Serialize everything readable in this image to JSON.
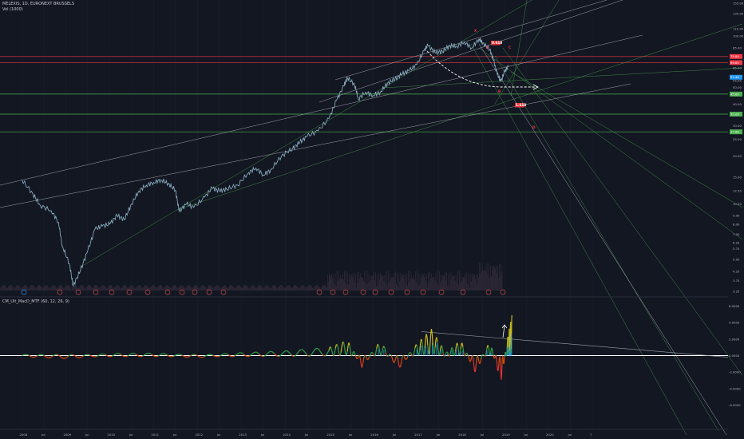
{
  "header": {
    "symbol_line": "MELEXIS, 1D, EURONEXT BRUSSELS",
    "volume_label": "Vol (1000)"
  },
  "indicator": {
    "label": "CM_Ult_MacD_MTF (60, 12, 26, 9)"
  },
  "colors": {
    "background": "#131722",
    "candle_line": "#8fb6c9",
    "red_line": "#f23645",
    "green_line": "#4caf50",
    "white_line": "#d1d4dc",
    "pattern_label_bg": "#e8333a",
    "price_tag_green": "#26a69a",
    "price_tag_blue": "#2196f3"
  },
  "pattern_labels": [
    "X",
    "A",
    "C",
    "B",
    "D",
    "0.618",
    "1.618"
  ],
  "chart_data": [
    {
      "type": "line",
      "title": "",
      "scale": "log",
      "x_ticks": [
        "2008",
        "Jul",
        "2009",
        "Jul",
        "2010",
        "Jul",
        "2011",
        "Jul",
        "2012",
        "Jul",
        "2013",
        "Jul",
        "2014",
        "Jul",
        "2015",
        "Jul",
        "2016",
        "Jul",
        "2017",
        "Jul",
        "2018",
        "Jul",
        "2019",
        "Jul",
        "2020",
        "Jul",
        "7"
      ],
      "y_ticks": [
        "155.00",
        "135.00",
        "110.00",
        "100.00",
        "85.00",
        "75.00",
        "65.00",
        "55.00",
        "50.00",
        "45.00",
        "40.00",
        "35.00",
        "30.00",
        "25.00",
        "20.00",
        "15.00",
        "12.50",
        "10.50",
        "9.00",
        "8.00",
        "7.00",
        "6.25",
        "5.75",
        "5.00",
        "4.25",
        "3.75",
        "3.25"
      ],
      "price_tags": [
        {
          "value": "75.80",
          "color": "#f23645"
        },
        {
          "value": "69.85",
          "color": "#f23645"
        },
        {
          "value": "57.40",
          "color": "#2196f3"
        },
        {
          "value": "45.80",
          "color": "#4caf50"
        },
        {
          "value": "35.00",
          "color": "#4caf50"
        },
        {
          "value": "27.60",
          "color": "#4caf50"
        }
      ],
      "series": [
        {
          "values": [
            [
              "2008-01",
              14.5
            ],
            [
              "2008-04",
              12.0
            ],
            [
              "2008-06",
              10.3
            ],
            [
              "2008-09",
              9.6
            ],
            [
              "2008-11",
              8.2
            ],
            [
              "2008-12",
              6.0
            ],
            [
              "2009-02",
              4.7
            ],
            [
              "2009-03",
              3.5
            ],
            [
              "2009-05",
              4.3
            ],
            [
              "2009-07",
              5.6
            ],
            [
              "2009-09",
              7.5
            ],
            [
              "2009-11",
              7.8
            ],
            [
              "2010-01",
              8.0
            ],
            [
              "2010-03",
              9.0
            ],
            [
              "2010-05",
              8.5
            ],
            [
              "2010-07",
              10.5
            ],
            [
              "2010-09",
              12.5
            ],
            [
              "2010-11",
              13.5
            ],
            [
              "2011-01",
              14.0
            ],
            [
              "2011-03",
              14.5
            ],
            [
              "2011-05",
              13.8
            ],
            [
              "2011-07",
              12.6
            ],
            [
              "2011-08",
              9.5
            ],
            [
              "2011-10",
              10.5
            ],
            [
              "2011-12",
              10.0
            ],
            [
              "2012-03",
              11.5
            ],
            [
              "2012-05",
              13.0
            ],
            [
              "2012-07",
              12.5
            ],
            [
              "2012-09",
              12.8
            ],
            [
              "2012-12",
              13.5
            ],
            [
              "2013-03",
              16.0
            ],
            [
              "2013-05",
              17.0
            ],
            [
              "2013-07",
              15.5
            ],
            [
              "2013-09",
              16.5
            ],
            [
              "2013-12",
              20.0
            ],
            [
              "2014-03",
              22.0
            ],
            [
              "2014-05",
              24.0
            ],
            [
              "2014-07",
              26.0
            ],
            [
              "2014-10",
              28.0
            ],
            [
              "2015-01",
              33.0
            ],
            [
              "2015-03",
              42.0
            ],
            [
              "2015-05",
              51.0
            ],
            [
              "2015-06",
              57.0
            ],
            [
              "2015-08",
              52.0
            ],
            [
              "2015-09",
              43.0
            ],
            [
              "2015-11",
              47.0
            ],
            [
              "2016-01",
              45.0
            ],
            [
              "2016-03",
              47.0
            ],
            [
              "2016-05",
              53.0
            ],
            [
              "2016-07",
              56.0
            ],
            [
              "2016-09",
              60.0
            ],
            [
              "2016-11",
              63.0
            ],
            [
              "2017-01",
              68.0
            ],
            [
              "2017-03",
              82.0
            ],
            [
              "2017-04",
              88.0
            ],
            [
              "2017-06",
              80.0
            ],
            [
              "2017-08",
              81.0
            ],
            [
              "2017-10",
              88.0
            ],
            [
              "2017-12",
              87.0
            ],
            [
              "2018-02",
              92.0
            ],
            [
              "2018-04",
              85.0
            ],
            [
              "2018-06",
              96.0
            ],
            [
              "2018-07",
              91.0
            ],
            [
              "2018-09",
              83.0
            ],
            [
              "2018-10",
              72.0
            ],
            [
              "2018-11",
              60.0
            ],
            [
              "2018-12",
              54.0
            ],
            [
              "2019-01",
              62.0
            ],
            [
              "2019-02",
              66.0
            ]
          ]
        }
      ]
    },
    {
      "type": "line",
      "title": "",
      "y_ticks": [
        "6.0000",
        "4.0000",
        "2.0000",
        "0.0000",
        "-2.0000",
        "-4.0000",
        "-6.0000"
      ],
      "zero_line": 0,
      "series": [
        {
          "values": [
            [
              "2008",
              0.0
            ],
            [
              "2009",
              -0.2
            ],
            [
              "2010",
              0.1
            ],
            [
              "2011",
              0.15
            ],
            [
              "2012",
              -0.1
            ],
            [
              "2013",
              0.2
            ],
            [
              "2014",
              0.4
            ],
            [
              "2015",
              0.8
            ],
            [
              "2015-06",
              1.6
            ],
            [
              "2015-10",
              -1.2
            ],
            [
              "2016-03",
              1.5
            ],
            [
              "2016-08",
              -1.4
            ],
            [
              "2017-01",
              1.2
            ],
            [
              "2017-05",
              2.8
            ],
            [
              "2017-09",
              0.2
            ],
            [
              "2018-01",
              1.6
            ],
            [
              "2018-05",
              -1.8
            ],
            [
              "2018-09",
              1.5
            ],
            [
              "2018-12",
              -2.8
            ],
            [
              "2019-02",
              2.2
            ],
            [
              "2019-03",
              4.4
            ]
          ]
        }
      ]
    }
  ]
}
